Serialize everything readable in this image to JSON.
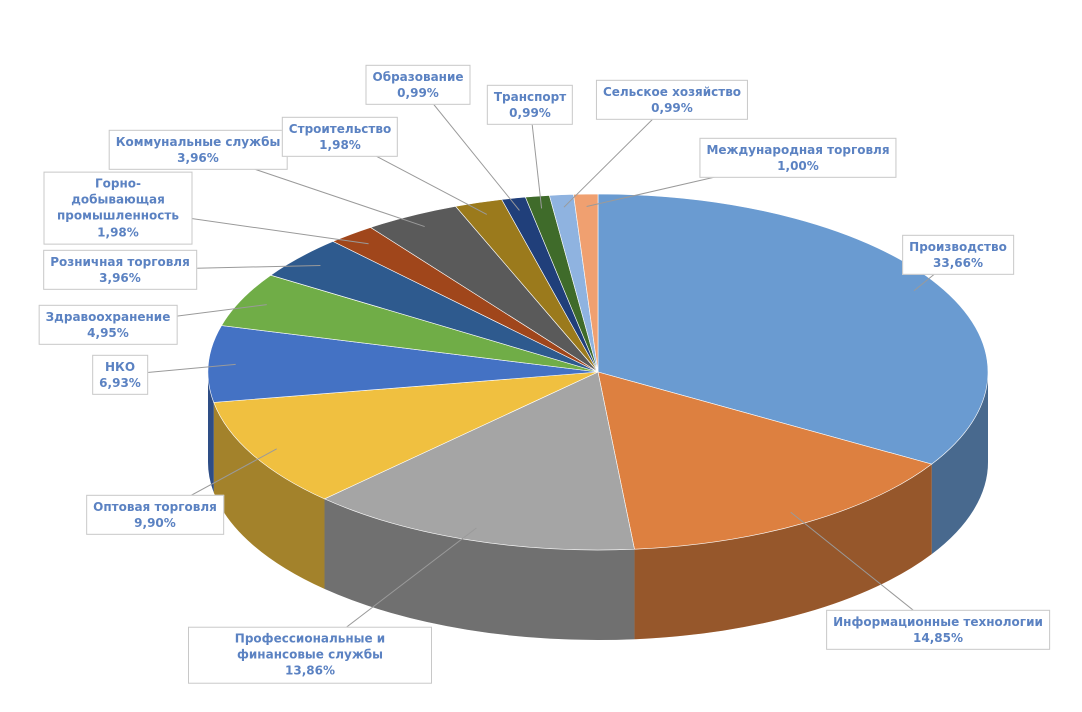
{
  "chart_data": {
    "type": "pie",
    "categories": [
      "Производство",
      "Информационные технологии",
      "Профессиональные и финансовые службы",
      "Оптовая торговля",
      "НКО",
      "Здравоохранение",
      "Розничная торговля",
      "Горно-добывающая промышленность",
      "Коммунальные службы",
      "Строительство",
      "Образование",
      "Транспорт",
      "Сельское хозяйство",
      "Международная торговля"
    ],
    "values": [
      33.66,
      14.85,
      13.86,
      9.9,
      6.93,
      4.95,
      3.96,
      1.98,
      3.96,
      1.98,
      0.99,
      0.99,
      0.99,
      1.0
    ],
    "value_labels": [
      "33,66%",
      "14,85%",
      "13,86%",
      "9,90%",
      "6,93%",
      "4,95%",
      "3,96%",
      "1,98%",
      "3,96%",
      "1,98%",
      "0,99%",
      "0,99%",
      "0,99%",
      "1,00%"
    ],
    "colors": [
      "#6a9bd1",
      "#dd8040",
      "#a5a5a5",
      "#f0c040",
      "#4472c4",
      "#70ad47",
      "#2e5a8e",
      "#a0461b",
      "#5a5a5a",
      "#9b7a1c",
      "#203f7a",
      "#3f6b2a",
      "#8fb3e0",
      "#f0a070"
    ]
  }
}
